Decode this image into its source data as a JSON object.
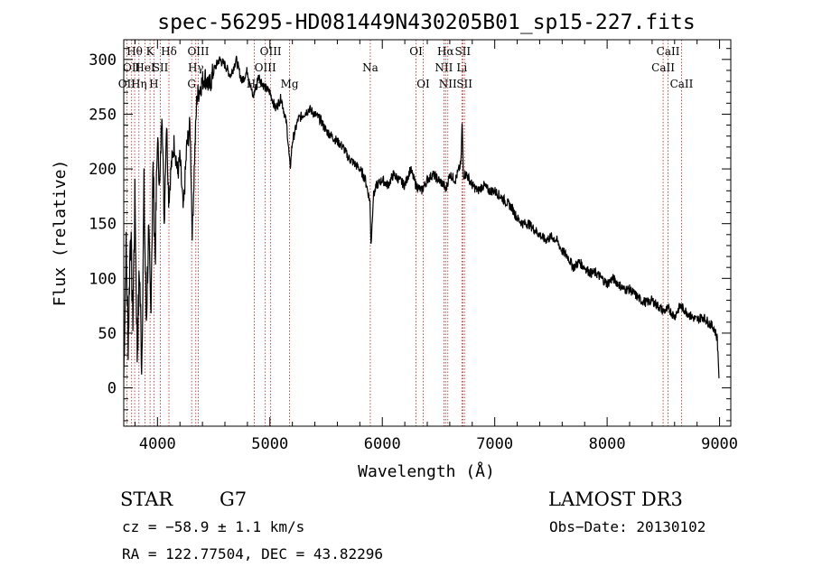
{
  "chart_data": {
    "type": "line",
    "title": "spec-56295-HD081449N430205B01_sp15-227.fits",
    "xlabel": "Wavelength (Å)",
    "ylabel": "Flux (relative)",
    "xlim": [
      3700,
      9100
    ],
    "ylim": [
      -35,
      318
    ],
    "xticks": [
      4000,
      5000,
      6000,
      7000,
      8000,
      9000
    ],
    "yticks": [
      0,
      50,
      100,
      150,
      200,
      250,
      300
    ],
    "series": [
      {
        "name": "flux",
        "x": [
          3700,
          3720,
          3740,
          3760,
          3780,
          3800,
          3820,
          3840,
          3860,
          3880,
          3900,
          3920,
          3940,
          3960,
          3980,
          4000,
          4020,
          4040,
          4060,
          4080,
          4100,
          4120,
          4150,
          4180,
          4200,
          4230,
          4260,
          4290,
          4310,
          4330,
          4350,
          4380,
          4420,
          4460,
          4500,
          4550,
          4600,
          4650,
          4700,
          4750,
          4800,
          4850,
          4900,
          4950,
          5000,
          5050,
          5100,
          5150,
          5180,
          5200,
          5250,
          5300,
          5350,
          5400,
          5450,
          5500,
          5550,
          5600,
          5650,
          5700,
          5750,
          5800,
          5850,
          5890,
          5900,
          5920,
          5950,
          6000,
          6050,
          6100,
          6150,
          6200,
          6250,
          6300,
          6350,
          6400,
          6450,
          6500,
          6550,
          6563,
          6600,
          6650,
          6700,
          6710,
          6720,
          6750,
          6800,
          6850,
          6900,
          6950,
          7000,
          7050,
          7100,
          7150,
          7200,
          7250,
          7300,
          7350,
          7400,
          7450,
          7500,
          7550,
          7600,
          7650,
          7700,
          7750,
          7800,
          7850,
          7900,
          7950,
          8000,
          8050,
          8100,
          8150,
          8200,
          8250,
          8300,
          8350,
          8400,
          8450,
          8500,
          8550,
          8600,
          8650,
          8700,
          8750,
          8800,
          8850,
          8900,
          8950,
          8980,
          9000
        ],
        "y": [
          10,
          130,
          40,
          150,
          60,
          175,
          30,
          110,
          20,
          180,
          60,
          140,
          70,
          200,
          120,
          230,
          180,
          260,
          150,
          245,
          170,
          200,
          225,
          195,
          210,
          160,
          220,
          240,
          140,
          210,
          265,
          275,
          285,
          275,
          290,
          300,
          295,
          285,
          300,
          280,
          290,
          265,
          285,
          275,
          270,
          255,
          265,
          240,
          200,
          225,
          245,
          250,
          255,
          250,
          245,
          235,
          230,
          225,
          220,
          210,
          205,
          200,
          190,
          170,
          130,
          175,
          185,
          190,
          185,
          195,
          190,
          185,
          200,
          185,
          180,
          190,
          195,
          190,
          185,
          180,
          195,
          190,
          205,
          245,
          195,
          195,
          185,
          180,
          185,
          180,
          180,
          175,
          170,
          165,
          155,
          150,
          150,
          145,
          140,
          135,
          138,
          135,
          125,
          120,
          110,
          115,
          110,
          105,
          105,
          100,
          95,
          100,
          95,
          90,
          90,
          85,
          80,
          78,
          80,
          75,
          70,
          72,
          65,
          75,
          70,
          65,
          62,
          65,
          60,
          55,
          45,
          0
        ]
      }
    ],
    "lines": [
      {
        "wave": 3727,
        "labels": [
          "OII"
        ],
        "row": 2
      },
      {
        "wave": 3770,
        "labels": [
          "OII"
        ],
        "row": 1
      },
      {
        "wave": 3797,
        "labels": [
          "Hθ"
        ],
        "row": 0
      },
      {
        "wave": 3835,
        "labels": [
          "Hη"
        ],
        "row": 2
      },
      {
        "wave": 3889,
        "labels": [
          "HeI"
        ],
        "row": 1
      },
      {
        "wave": 3934,
        "labels": [
          "K"
        ],
        "row": 0
      },
      {
        "wave": 3968,
        "labels": [
          "H"
        ],
        "row": 2
      },
      {
        "wave": 4026,
        "labels": [
          "SII"
        ],
        "row": 1
      },
      {
        "wave": 4102,
        "labels": [
          "Hδ"
        ],
        "row": 0
      },
      {
        "wave": 4304,
        "labels": [
          "G"
        ],
        "row": 2
      },
      {
        "wave": 4341,
        "labels": [
          "Hγ"
        ],
        "row": 1
      },
      {
        "wave": 4363,
        "labels": [
          "OIII"
        ],
        "row": 0
      },
      {
        "wave": 4861,
        "labels": [
          "Hβ"
        ],
        "row": 2
      },
      {
        "wave": 4959,
        "labels": [
          "OIII"
        ],
        "row": 1
      },
      {
        "wave": 5007,
        "labels": [
          "OIII"
        ],
        "row": 0
      },
      {
        "wave": 5175,
        "labels": [
          "Mg"
        ],
        "row": 2
      },
      {
        "wave": 5893,
        "labels": [
          "Na"
        ],
        "row": 1
      },
      {
        "wave": 6300,
        "labels": [
          "OI"
        ],
        "row": 0
      },
      {
        "wave": 6364,
        "labels": [
          "OI"
        ],
        "row": 2
      },
      {
        "wave": 6548,
        "labels": [
          "NII"
        ],
        "row": 1
      },
      {
        "wave": 6563,
        "labels": [
          "Hα"
        ],
        "row": 0
      },
      {
        "wave": 6583,
        "labels": [
          "NII"
        ],
        "row": 2
      },
      {
        "wave": 6708,
        "labels": [
          "Li"
        ],
        "row": 1
      },
      {
        "wave": 6716,
        "labels": [
          "SII"
        ],
        "row": 0
      },
      {
        "wave": 6731,
        "labels": [
          "SII"
        ],
        "row": 2
      },
      {
        "wave": 8498,
        "labels": [
          "CaII"
        ],
        "row": 1
      },
      {
        "wave": 8542,
        "labels": [
          "CaII"
        ],
        "row": 0
      },
      {
        "wave": 8662,
        "labels": [
          "CaII"
        ],
        "row": 2
      }
    ]
  },
  "info": {
    "object_type": "STAR",
    "subclass": "G7",
    "survey": "LAMOST DR3",
    "cz": "cz = −58.9 ± 1.1 km/s",
    "obs_date": "Obs−Date: 20130102",
    "radec": "RA = 122.77504, DEC =  43.82296"
  },
  "colors": {
    "spectrum": "#000000",
    "line_marker": "#b22222",
    "axes": "#000000"
  }
}
